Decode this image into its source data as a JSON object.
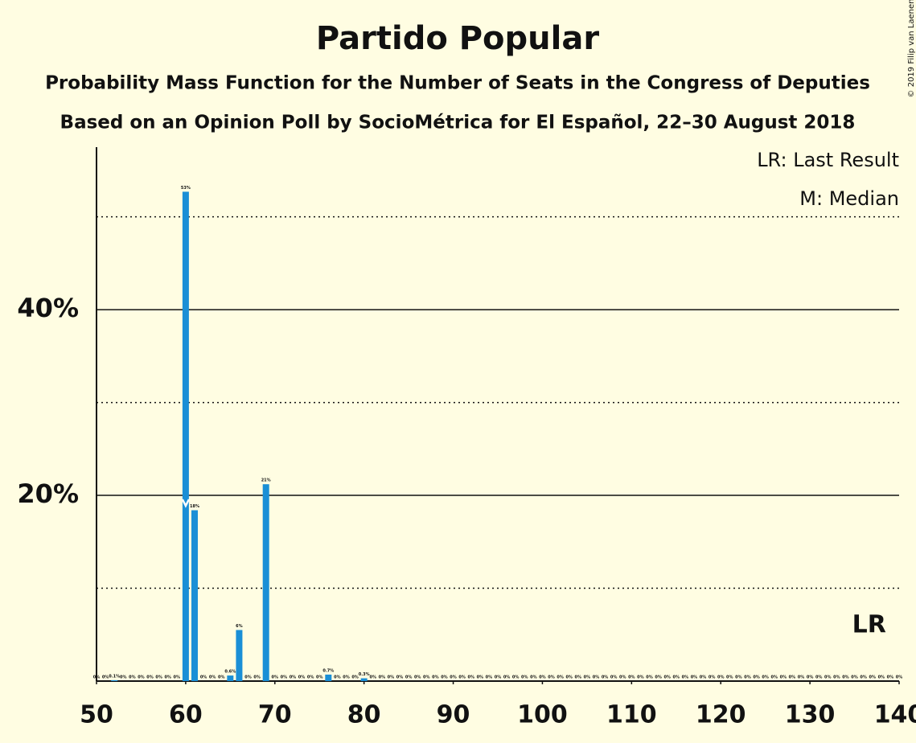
{
  "chart_data": {
    "type": "bar",
    "title": "Partido Popular",
    "subtitle": "Probability Mass Function for the Number of Seats in the Congress of Deputies",
    "subtitle2": "Based on an Opinion Poll by SocioMétrica for El Español, 22–30 August 2018",
    "copyright": "© 2019 Filip van Laenen",
    "legend_last_result": "LR: Last Result",
    "legend_median": "M: Median",
    "last_result_label": "LR",
    "last_result": 137,
    "median": 60,
    "color": "#1a8fd6",
    "x": [
      50,
      51,
      52,
      53,
      54,
      55,
      56,
      57,
      58,
      59,
      60,
      61,
      62,
      63,
      64,
      65,
      66,
      67,
      68,
      69,
      70,
      71,
      72,
      73,
      74,
      75,
      76,
      77,
      78,
      79,
      80,
      81,
      82,
      83,
      84,
      85,
      86,
      87,
      88,
      89,
      90,
      91,
      92,
      93,
      94,
      95,
      96,
      97,
      98,
      99,
      100,
      101,
      102,
      103,
      104,
      105,
      106,
      107,
      108,
      109,
      110,
      111,
      112,
      113,
      114,
      115,
      116,
      117,
      118,
      119,
      120,
      121,
      122,
      123,
      124,
      125,
      126,
      127,
      128,
      129,
      130,
      131,
      132,
      133,
      134,
      135,
      136,
      137,
      138,
      139,
      140
    ],
    "values": [
      0,
      0,
      0.1,
      0,
      0,
      0,
      0,
      0,
      0,
      0,
      52.7,
      18.4,
      0,
      0,
      0,
      0.6,
      5.5,
      0,
      0,
      21.2,
      0,
      0,
      0,
      0,
      0,
      0,
      0.7,
      0,
      0,
      0,
      0.3,
      0,
      0,
      0,
      0,
      0,
      0,
      0,
      0,
      0,
      0,
      0,
      0,
      0,
      0,
      0,
      0,
      0,
      0,
      0,
      0,
      0,
      0,
      0,
      0,
      0,
      0,
      0,
      0,
      0,
      0,
      0,
      0,
      0,
      0,
      0,
      0,
      0,
      0,
      0,
      0,
      0,
      0,
      0,
      0,
      0,
      0,
      0,
      0,
      0,
      0,
      0,
      0,
      0,
      0,
      0,
      0,
      0,
      0,
      0,
      0
    ],
    "value_labels": [
      "0%",
      "0%",
      "0.1%",
      "0%",
      "0%",
      "0%",
      "0%",
      "0%",
      "0%",
      "0%",
      "53%",
      "18%",
      "0%",
      "0%",
      "0%",
      "0.6%",
      "6%",
      "0%",
      "0%",
      "21%",
      "0%",
      "0%",
      "0%",
      "0%",
      "0%",
      "0%",
      "0.7%",
      "0%",
      "0%",
      "0%",
      "0.3%",
      "0%",
      "0%",
      "0%",
      "0%",
      "0%",
      "0%",
      "0%",
      "0%",
      "0%",
      "0%",
      "0%",
      "0%",
      "0%",
      "0%",
      "0%",
      "0%",
      "0%",
      "0%",
      "0%",
      "0%",
      "0%",
      "0%",
      "0%",
      "0%",
      "0%",
      "0%",
      "0%",
      "0%",
      "0%",
      "0%",
      "0%",
      "0%",
      "0%",
      "0%",
      "0%",
      "0%",
      "0%",
      "0%",
      "0%",
      "0%",
      "0%",
      "0%",
      "0%",
      "0%",
      "0%",
      "0%",
      "0%",
      "0%",
      "0%",
      "0%",
      "0%",
      "0%",
      "0%",
      "0%",
      "0%",
      "0%",
      "0%",
      "0%",
      "0%",
      "0%"
    ],
    "xlim": [
      50,
      140
    ],
    "xticks": [
      50,
      60,
      70,
      80,
      90,
      100,
      110,
      120,
      130,
      140
    ],
    "ylim": [
      0,
      57.5
    ],
    "yticks": [
      {
        "value": 20,
        "label": "20%"
      },
      {
        "value": 40,
        "label": "40%"
      }
    ],
    "minor_gridlines": [
      10,
      30,
      50
    ],
    "grid": true
  }
}
